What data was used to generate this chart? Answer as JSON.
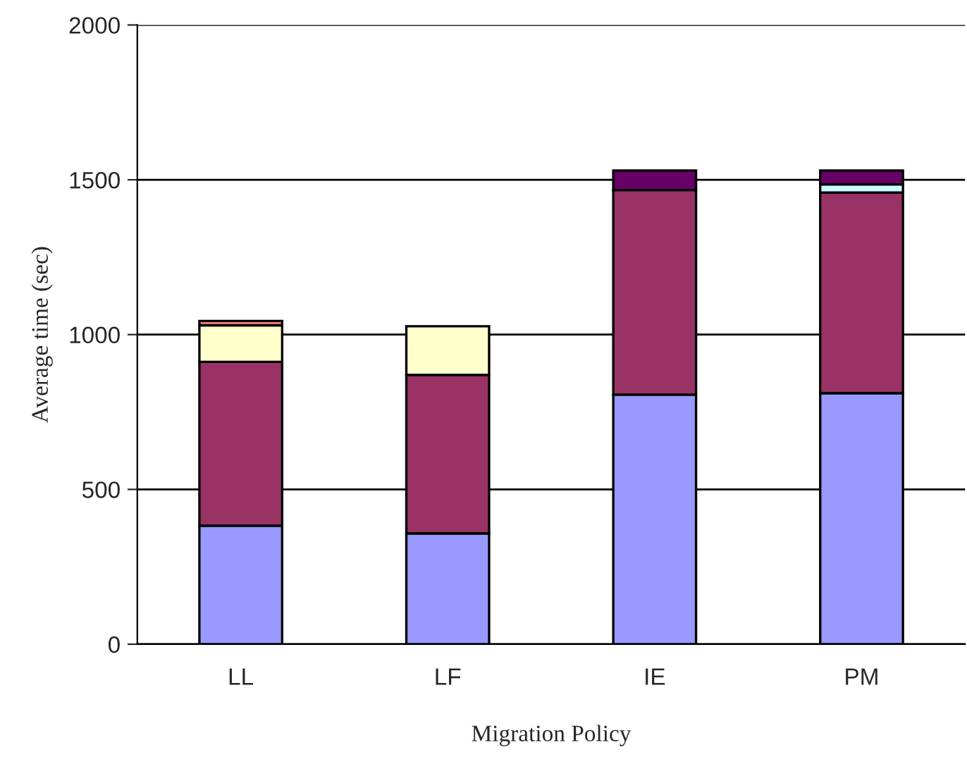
{
  "chart_data": {
    "type": "bar",
    "stacked": true,
    "xlabel": "Migration Policy",
    "ylabel": "Average time (sec)",
    "categories": [
      "LL",
      "LF",
      "IE",
      "PM"
    ],
    "series": [
      {
        "color": "#9999ff",
        "values": [
          383,
          358,
          806,
          811
        ]
      },
      {
        "color": "#993366",
        "values": [
          529,
          512,
          661,
          648
        ]
      },
      {
        "color": "#ffffcc",
        "values": [
          118,
          157,
          null,
          null
        ]
      },
      {
        "color": "#ff8080",
        "values": [
          14,
          null,
          null,
          null
        ]
      },
      {
        "color": "#ccffff",
        "values": [
          null,
          null,
          null,
          26
        ]
      },
      {
        "color": "#660066",
        "values": [
          null,
          null,
          63,
          45
        ]
      }
    ],
    "ylim": [
      0,
      2000
    ],
    "yticks": [
      0,
      500,
      1000,
      1500,
      2000
    ],
    "grid": "y"
  }
}
